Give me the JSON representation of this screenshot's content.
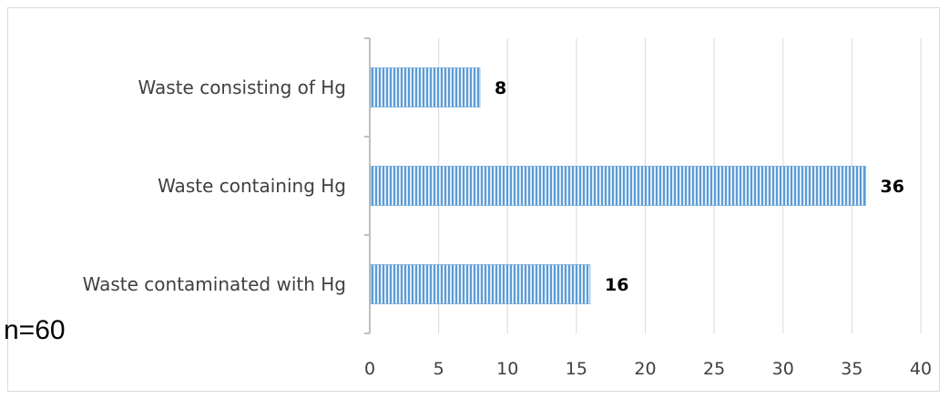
{
  "chart_data": {
    "type": "bar",
    "orientation": "horizontal",
    "categories": [
      "Waste consisting of Hg",
      "Waste containing Hg",
      "Waste contaminated with Hg"
    ],
    "values": [
      8,
      36,
      16
    ],
    "xlim": [
      0,
      40
    ],
    "xticks": [
      0,
      5,
      10,
      15,
      20,
      25,
      30,
      35,
      40
    ],
    "grid": "vertical",
    "bar_fill": "vertical hatch",
    "colors": {
      "bar": "#5b9bd5",
      "bar_light": "#ddebf7",
      "grid": "#d9d9d9",
      "axis": "#bfbfbf"
    }
  },
  "note": "n=60"
}
